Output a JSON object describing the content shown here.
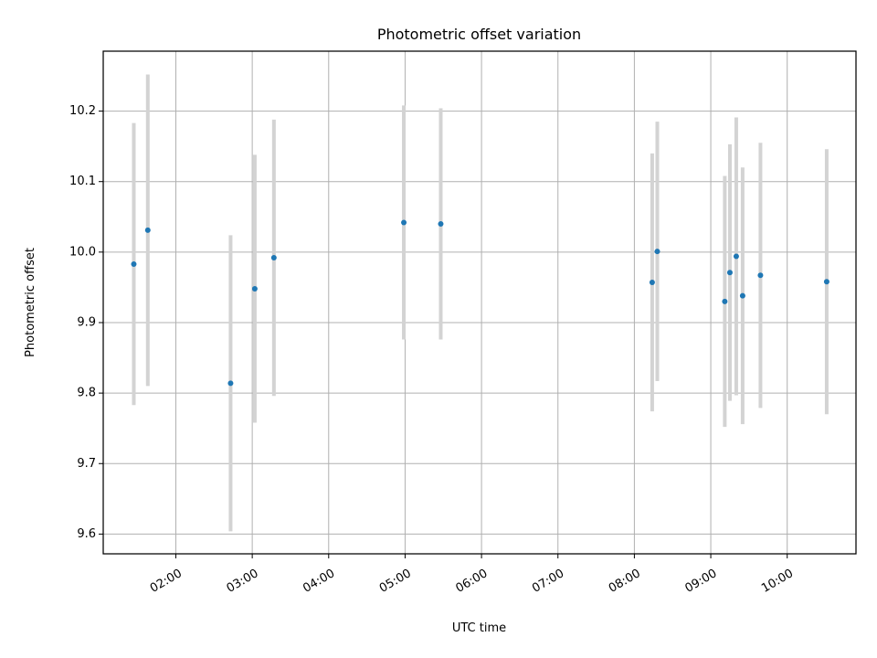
{
  "chart_data": {
    "type": "scatter",
    "title": "Photometric offset variation",
    "xlabel": "UTC time",
    "ylabel": "Photometric offset",
    "x_tick_labels": [
      "02:00",
      "03:00",
      "04:00",
      "05:00",
      "06:00",
      "07:00",
      "08:00",
      "09:00",
      "10:00"
    ],
    "y_tick_labels": [
      "9.6",
      "9.7",
      "9.8",
      "9.9",
      "10.0",
      "10.1",
      "10.2"
    ],
    "xlim": [
      "01:03",
      "10:54"
    ],
    "ylim": [
      9.572,
      10.285
    ],
    "grid": true,
    "points": [
      {
        "x": "01:27",
        "y": 9.983,
        "err": 0.2
      },
      {
        "x": "01:38",
        "y": 10.031,
        "err": 0.221
      },
      {
        "x": "02:43",
        "y": 9.814,
        "err": 0.21
      },
      {
        "x": "03:02",
        "y": 9.948,
        "err": 0.19
      },
      {
        "x": "03:17",
        "y": 9.992,
        "err": 0.196
      },
      {
        "x": "04:59",
        "y": 10.042,
        "err": 0.166
      },
      {
        "x": "05:28",
        "y": 10.04,
        "err": 0.164
      },
      {
        "x": "08:14",
        "y": 9.957,
        "err": 0.183
      },
      {
        "x": "08:18",
        "y": 10.001,
        "err": 0.184
      },
      {
        "x": "09:11",
        "y": 9.93,
        "err": 0.178
      },
      {
        "x": "09:15",
        "y": 9.971,
        "err": 0.182
      },
      {
        "x": "09:20",
        "y": 9.994,
        "err": 0.197
      },
      {
        "x": "09:25",
        "y": 9.938,
        "err": 0.182
      },
      {
        "x": "09:39",
        "y": 9.967,
        "err": 0.188
      },
      {
        "x": "10:31",
        "y": 9.958,
        "err": 0.188
      }
    ]
  },
  "colors": {
    "point": "#1f77b4",
    "errorbar": "#d3d3d3",
    "grid": "#b0b0b0",
    "axes": "#000000"
  }
}
